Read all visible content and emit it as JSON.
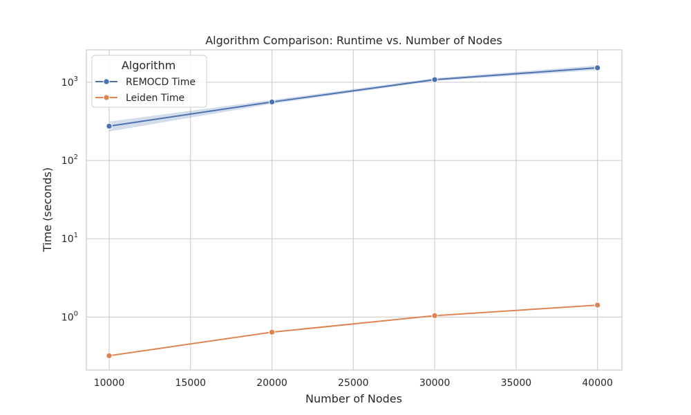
{
  "chart_data": {
    "type": "line",
    "title": "Algorithm Comparison: Runtime vs. Number of Nodes",
    "xlabel": "Number of Nodes",
    "ylabel": "Time (seconds)",
    "x": [
      10000,
      20000,
      30000,
      40000
    ],
    "x_ticks": [
      "10000",
      "15000",
      "20000",
      "25000",
      "30000",
      "35000",
      "40000"
    ],
    "x_tick_values": [
      10000,
      15000,
      20000,
      25000,
      30000,
      35000,
      40000
    ],
    "xlim": [
      8600,
      41500
    ],
    "y_scale": "log",
    "ylim": [
      0.21,
      2600
    ],
    "y_ticks": [
      {
        "value": 1,
        "base": "10",
        "exp": "0"
      },
      {
        "value": 10,
        "base": "10",
        "exp": "1"
      },
      {
        "value": 100,
        "base": "10",
        "exp": "2"
      },
      {
        "value": 1000,
        "base": "10",
        "exp": "3"
      }
    ],
    "grid": true,
    "legend": {
      "title": "Algorithm",
      "placement": "top-left"
    },
    "series": [
      {
        "name": "REMOCD Time",
        "color": "#4c72b0",
        "values": [
          275,
          560,
          1080,
          1530
        ],
        "ci_low": [
          235,
          530,
          1040,
          1430
        ],
        "ci_high": [
          315,
          595,
          1130,
          1640
        ]
      },
      {
        "name": "Leiden Time",
        "color": "#dd8452",
        "values": [
          0.32,
          0.64,
          1.04,
          1.42
        ]
      }
    ]
  }
}
